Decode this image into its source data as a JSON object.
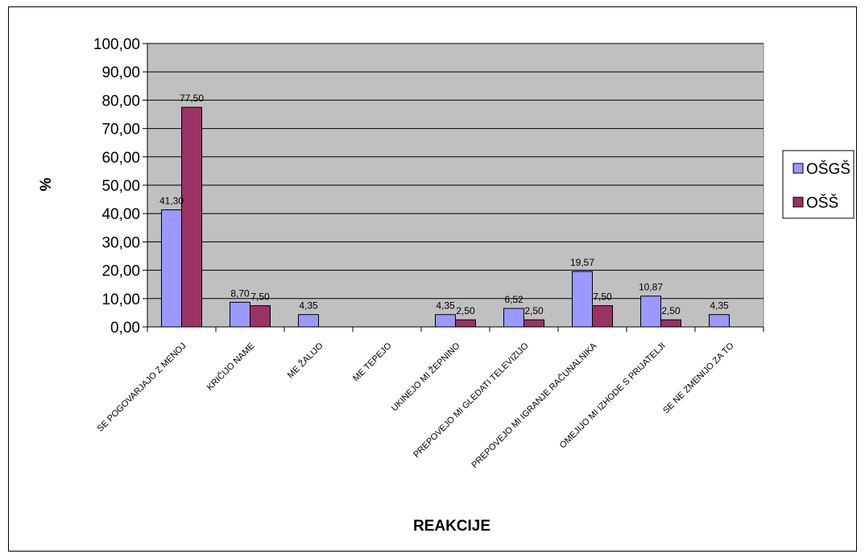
{
  "chart_data": {
    "type": "bar",
    "xlabel": "REAKCIJE",
    "ylabel": "%",
    "ylim": [
      0,
      100
    ],
    "yticks": [
      "0,00",
      "10,00",
      "20,00",
      "30,00",
      "40,00",
      "50,00",
      "60,00",
      "70,00",
      "80,00",
      "90,00",
      "100,00"
    ],
    "grid": true,
    "legend": "right",
    "categories": [
      "SE POGOVARJAJO Z MENOJ",
      "KRIČIJO NAME",
      "ME ŽALIJO",
      "ME TEPEJO",
      "UKINEJO MI ŽEPNINO",
      "PREPOVEJO MI GLEDATI TELEVIZIJO",
      "PREPOVEJO MI IGRANJE RAČUNALNIKA",
      "OMEJIJO MI IZHODE S PRIJATELJI",
      "SE NE ZMENIJO ZA TO"
    ],
    "series": [
      {
        "name": "OŠGŠ",
        "color": "#9999ff",
        "values": [
          41.3,
          8.7,
          4.35,
          null,
          4.35,
          6.52,
          19.57,
          10.87,
          4.35
        ],
        "labels": [
          "41,30",
          "8,70",
          "4,35",
          "",
          "4,35",
          "6,52",
          "19,57",
          "10,87",
          "4,35"
        ]
      },
      {
        "name": "OŠŠ",
        "color": "#993366",
        "values": [
          77.5,
          7.5,
          null,
          null,
          2.5,
          2.5,
          7.5,
          2.5,
          null
        ],
        "labels": [
          "77,50",
          "7,50",
          "",
          "",
          "2,50",
          "2,50",
          "7,50",
          "2,50",
          ""
        ]
      }
    ],
    "plot_background": "#c0c0c0"
  }
}
